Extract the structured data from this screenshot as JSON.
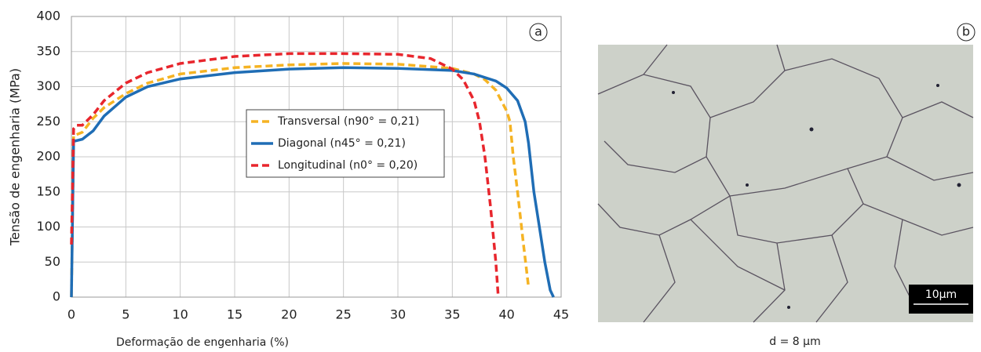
{
  "chart_data": {
    "type": "line",
    "panel_label": "a",
    "xlabel": "Deformação de engenharia (%)",
    "ylabel": "Tensão de engenharia (MPa)",
    "xlim": [
      0,
      45
    ],
    "xticks": [
      0,
      5,
      10,
      15,
      20,
      25,
      30,
      35,
      40,
      45
    ],
    "ylim": [
      0,
      400
    ],
    "yticks": [
      0,
      50,
      100,
      150,
      200,
      250,
      300,
      350,
      400
    ],
    "grid": true,
    "legend": "center",
    "series": [
      {
        "name": "Transversal (n90° = 0,21)",
        "color": "#f5b323",
        "dash": true,
        "x": [
          0,
          0.2,
          1,
          2,
          3,
          5,
          7,
          10,
          15,
          20,
          25,
          30,
          35,
          37,
          38,
          39,
          40,
          40.3,
          40.6,
          41,
          41.5,
          42
        ],
        "values": [
          0,
          230,
          235,
          255,
          270,
          290,
          305,
          318,
          327,
          331,
          333,
          332,
          326,
          318,
          310,
          295,
          265,
          250,
          200,
          150,
          80,
          15
        ]
      },
      {
        "name": "Diagonal (n45° = 0,21)",
        "color": "#1f6db5",
        "dash": false,
        "x": [
          0,
          0.2,
          1,
          2,
          3,
          5,
          7,
          10,
          15,
          20,
          25,
          30,
          35,
          37,
          39,
          40,
          41,
          41.7,
          42,
          42.5,
          43,
          43.5,
          44,
          44.3
        ],
        "values": [
          0,
          222,
          225,
          237,
          258,
          285,
          300,
          311,
          320,
          325,
          327,
          326,
          323,
          318,
          308,
          298,
          280,
          250,
          220,
          150,
          100,
          50,
          10,
          0
        ]
      },
      {
        "name": "Longitudinal (n0° = 0,20)",
        "color": "#e8262d",
        "dash": true,
        "x": [
          0,
          0.2,
          0.5,
          1,
          2,
          3,
          5,
          7,
          10,
          15,
          20,
          25,
          30,
          33,
          35,
          36,
          37,
          37.5,
          38,
          38.5,
          39,
          39.2
        ],
        "values": [
          75,
          240,
          245,
          245,
          260,
          280,
          305,
          320,
          333,
          343,
          347,
          347,
          346,
          340,
          325,
          310,
          280,
          250,
          200,
          130,
          50,
          5
        ]
      }
    ]
  },
  "figure": {
    "panel_label": "b",
    "scale_bar": "10µm",
    "caption": "d = 8 µm"
  }
}
